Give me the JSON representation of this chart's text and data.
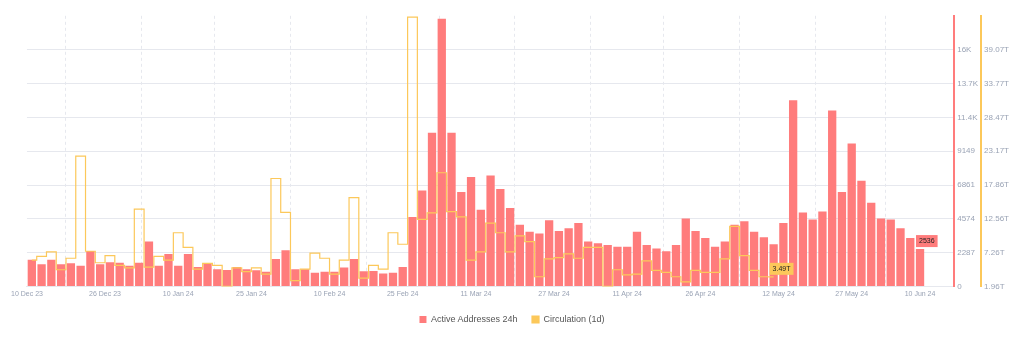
{
  "chart_data": {
    "type": "bar",
    "grid": true,
    "legend": "bottom",
    "x": [
      "2023-12-11",
      "2023-12-13",
      "2023-12-15",
      "2023-12-17",
      "2023-12-19",
      "2023-12-21",
      "2023-12-23",
      "2023-12-25",
      "2023-12-27",
      "2023-12-29",
      "2023-12-31",
      "2024-01-02",
      "2024-01-04",
      "2024-01-06",
      "2024-01-08",
      "2024-01-10",
      "2024-01-12",
      "2024-01-14",
      "2024-01-16",
      "2024-01-18",
      "2024-01-20",
      "2024-01-22",
      "2024-01-24",
      "2024-01-26",
      "2024-01-28",
      "2024-01-30",
      "2024-02-01",
      "2024-02-03",
      "2024-02-05",
      "2024-02-07",
      "2024-02-09",
      "2024-02-11",
      "2024-02-13",
      "2024-02-15",
      "2024-02-17",
      "2024-02-19",
      "2024-02-21",
      "2024-02-23",
      "2024-02-25",
      "2024-02-27",
      "2024-02-29",
      "2024-03-02",
      "2024-03-04",
      "2024-03-06",
      "2024-03-08",
      "2024-03-10",
      "2024-03-12",
      "2024-03-14",
      "2024-03-16",
      "2024-03-18",
      "2024-03-20",
      "2024-03-22",
      "2024-03-24",
      "2024-03-26",
      "2024-03-28",
      "2024-03-30",
      "2024-04-01",
      "2024-04-03",
      "2024-04-05",
      "2024-04-07",
      "2024-04-09",
      "2024-04-11",
      "2024-04-13",
      "2024-04-15",
      "2024-04-17",
      "2024-04-19",
      "2024-04-21",
      "2024-04-23",
      "2024-04-25",
      "2024-04-27",
      "2024-04-29",
      "2024-05-01",
      "2024-05-03",
      "2024-05-05",
      "2024-05-07",
      "2024-05-09",
      "2024-05-11",
      "2024-05-13",
      "2024-05-15",
      "2024-05-17",
      "2024-05-19",
      "2024-05-21",
      "2024-05-23",
      "2024-05-25",
      "2024-05-27",
      "2024-05-29",
      "2024-05-31",
      "2024-06-02",
      "2024-06-04",
      "2024-06-06",
      "2024-06-08",
      "2024-06-10"
    ],
    "xlim": [
      "2023-12-10",
      "2024-06-17"
    ],
    "xticks": [
      {
        "value": "2023-12-10",
        "label": "10 Dec 23"
      },
      {
        "value": "2023-12-26",
        "label": "26 Dec 23"
      },
      {
        "value": "2024-01-10",
        "label": "10 Jan 24"
      },
      {
        "value": "2024-01-25",
        "label": "25 Jan 24"
      },
      {
        "value": "2024-02-10",
        "label": "10 Feb 24"
      },
      {
        "value": "2024-02-25",
        "label": "25 Feb 24"
      },
      {
        "value": "2024-03-11",
        "label": "11 Mar 24"
      },
      {
        "value": "2024-03-27",
        "label": "27 Mar 24"
      },
      {
        "value": "2024-04-11",
        "label": "11 Apr 24"
      },
      {
        "value": "2024-04-26",
        "label": "26 Apr 24"
      },
      {
        "value": "2024-05-12",
        "label": "12 May 24"
      },
      {
        "value": "2024-05-27",
        "label": "27 May 24"
      },
      {
        "value": "2024-06-10",
        "label": "10 Jun 24"
      }
    ],
    "ylim": [
      0,
      18300
    ],
    "yticks": [
      0,
      2287,
      4574,
      6861,
      9149,
      {
        "value": 11435,
        "label": "11.4K"
      },
      {
        "value": 13722,
        "label": "13.7K"
      },
      {
        "value": 16009,
        "label": "16K"
      }
    ],
    "y2lim": [
      1.96,
      44.4
    ],
    "y2ticks": [
      {
        "value": 1.96,
        "label": "1.96T"
      },
      {
        "value": 7.26,
        "label": "7.26T"
      },
      {
        "value": 12.56,
        "label": "12.56T"
      },
      {
        "value": 17.86,
        "label": "17.86T"
      },
      {
        "value": 23.17,
        "label": "23.17T"
      },
      {
        "value": 28.47,
        "label": "28.47T"
      },
      {
        "value": 33.77,
        "label": "33.77T"
      },
      {
        "value": 39.07,
        "label": "39.07T"
      }
    ],
    "series": [
      {
        "name": "Active Addresses 24h",
        "color": "#ff7c7c",
        "values": [
          1810,
          1510,
          1810,
          1510,
          1570,
          1410,
          2400,
          1510,
          1650,
          1610,
          1410,
          1610,
          3040,
          1410,
          2200,
          1410,
          2200,
          1330,
          1590,
          1180,
          1130,
          1330,
          1180,
          1100,
          1000,
          1860,
          2450,
          1180,
          1180,
          930,
          1000,
          1000,
          1290,
          1860,
          1030,
          1050,
          890,
          930,
          1330,
          4700,
          6500,
          10390,
          18100,
          10390,
          6390,
          7400,
          5190,
          7500,
          6600,
          5310,
          4180,
          3700,
          3580,
          4480,
          3760,
          3940,
          4300,
          3040,
          2930,
          2810,
          2690,
          2690,
          3700,
          2810,
          2570,
          2390,
          2810,
          4600,
          3760,
          3280,
          2690,
          3040,
          4180,
          4420,
          3700,
          3340,
          2870,
          4300,
          12600,
          5010,
          4540,
          5070,
          11900,
          6390,
          9670,
          7160,
          5670,
          4600,
          4540,
          3940,
          3280,
          2536
        ],
        "value_labels": [
          null,
          null,
          null,
          null,
          null,
          null,
          null,
          null,
          null,
          null,
          null,
          null,
          null,
          null,
          null,
          null,
          null,
          null,
          null,
          null,
          null,
          null,
          null,
          null,
          null,
          null,
          null,
          null,
          null,
          null,
          null,
          null,
          null,
          null,
          null,
          null,
          null,
          null,
          null,
          null,
          null,
          null,
          null,
          null,
          null,
          null,
          null,
          null,
          null,
          null,
          null,
          null,
          null,
          null,
          null,
          null,
          null,
          null,
          null,
          null,
          null,
          null,
          null,
          null,
          null,
          null,
          null,
          null,
          null,
          null,
          null,
          null,
          null,
          null,
          null,
          null,
          null,
          null,
          null,
          null,
          null,
          null,
          null,
          null,
          null,
          null,
          null,
          null,
          null,
          null,
          null,
          "2536"
        ]
      },
      {
        "name": "Circulation (1d)",
        "type": "step",
        "axis": "y2",
        "color": "#fcc85a",
        "values": [
          6.1,
          6.7,
          7.4,
          4.6,
          6.4,
          22.4,
          7.5,
          5.7,
          6.8,
          5.3,
          4.9,
          14.1,
          5.0,
          6.7,
          6.1,
          10.4,
          8.1,
          4.7,
          5.6,
          5.3,
          2.0,
          4.9,
          4.3,
          4.9,
          3.9,
          18.9,
          13.6,
          2.9,
          4.7,
          7.2,
          6.4,
          3.9,
          6.1,
          15.9,
          3.3,
          5.3,
          4.7,
          10.4,
          8.6,
          44.2,
          12.5,
          13.5,
          19.8,
          13.7,
          12.9,
          6.1,
          7.4,
          11.9,
          10.4,
          7.4,
          9.9,
          9.0,
          3.5,
          6.3,
          6.5,
          7.1,
          6.4,
          8.1,
          8.1,
          2.0,
          4.6,
          3.8,
          3.9,
          6.0,
          4.5,
          4.2,
          3.5,
          2.7,
          4.5,
          4.2,
          4.2,
          6.3,
          11.4,
          6.8,
          4.5,
          3.5,
          3.49,
          null,
          null,
          null,
          null,
          null,
          null,
          null,
          null,
          null,
          null,
          null,
          null,
          null,
          null,
          null
        ],
        "value_labels": [
          null,
          null,
          null,
          null,
          null,
          null,
          null,
          null,
          null,
          null,
          null,
          null,
          null,
          null,
          null,
          null,
          null,
          null,
          null,
          null,
          null,
          null,
          null,
          null,
          null,
          null,
          null,
          null,
          null,
          null,
          null,
          null,
          null,
          null,
          null,
          null,
          null,
          null,
          null,
          null,
          null,
          null,
          null,
          null,
          null,
          null,
          null,
          null,
          null,
          null,
          null,
          null,
          null,
          null,
          null,
          null,
          null,
          null,
          null,
          null,
          null,
          null,
          null,
          null,
          null,
          null,
          null,
          null,
          null,
          null,
          null,
          null,
          null,
          null,
          null,
          null,
          "3.49T",
          null,
          null,
          null,
          null,
          null,
          null,
          null,
          null,
          null,
          null,
          null,
          null,
          null,
          null,
          null
        ]
      }
    ]
  }
}
